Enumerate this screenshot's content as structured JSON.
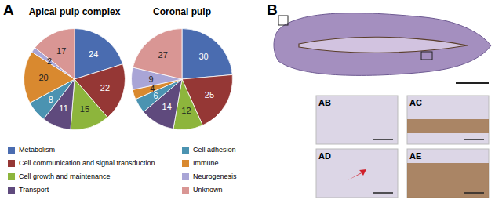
{
  "chart_data": [
    {
      "type": "pie",
      "title": "Apical pulp complex",
      "categories": [
        "Metabolism",
        "Cell communication and signal transduction",
        "Cell growth and maintenance",
        "Transport",
        "Cell adhesion",
        "Immune",
        "Neurogenesis",
        "Unknown"
      ],
      "values": [
        24,
        22,
        15,
        11,
        8,
        20,
        2,
        17
      ],
      "colors": [
        "#4a6cb0",
        "#953735",
        "#8db53c",
        "#5f4a7d",
        "#4b93b1",
        "#d9892f",
        "#a9a5d6",
        "#d99694"
      ],
      "data_labels": true
    },
    {
      "type": "pie",
      "title": "Coronal pulp",
      "categories": [
        "Metabolism",
        "Cell communication and signal transduction",
        "Cell growth and maintenance",
        "Transport",
        "Cell adhesion",
        "Immune",
        "Neurogenesis",
        "Unknown"
      ],
      "values": [
        30,
        25,
        12,
        14,
        6,
        4,
        9,
        27
      ],
      "colors": [
        "#4a6cb0",
        "#953735",
        "#8db53c",
        "#5f4a7d",
        "#4b93b1",
        "#d9892f",
        "#a9a5d6",
        "#d99694"
      ],
      "data_labels": true
    }
  ],
  "panel_labels": [
    "A",
    "B"
  ],
  "image_labels": [
    "AB",
    "AC",
    "AD",
    "AE"
  ]
}
